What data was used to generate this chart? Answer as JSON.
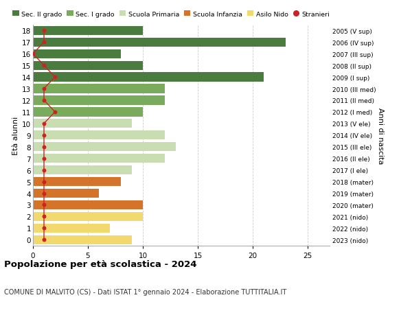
{
  "ages": [
    18,
    17,
    16,
    15,
    14,
    13,
    12,
    11,
    10,
    9,
    8,
    7,
    6,
    5,
    4,
    3,
    2,
    1,
    0
  ],
  "right_labels": [
    "2005 (V sup)",
    "2006 (IV sup)",
    "2007 (III sup)",
    "2008 (II sup)",
    "2009 (I sup)",
    "2010 (III med)",
    "2011 (II med)",
    "2012 (I med)",
    "2013 (V ele)",
    "2014 (IV ele)",
    "2015 (III ele)",
    "2016 (II ele)",
    "2017 (I ele)",
    "2018 (mater)",
    "2019 (mater)",
    "2020 (mater)",
    "2021 (nido)",
    "2022 (nido)",
    "2023 (nido)"
  ],
  "bar_values": [
    10,
    23,
    8,
    10,
    21,
    12,
    12,
    10,
    9,
    12,
    13,
    12,
    9,
    8,
    6,
    10,
    10,
    7,
    9
  ],
  "bar_colors": [
    "#4a7c40",
    "#4a7c40",
    "#4a7c40",
    "#4a7c40",
    "#4a7c40",
    "#7aab5c",
    "#7aab5c",
    "#7aab5c",
    "#c8ddb0",
    "#c8ddb0",
    "#c8ddb0",
    "#c8ddb0",
    "#c8ddb0",
    "#d4732a",
    "#d4732a",
    "#d4732a",
    "#f2d96e",
    "#f2d96e",
    "#f2d96e"
  ],
  "stranieri_values": [
    1,
    1,
    0,
    1,
    2,
    1,
    1,
    2,
    1,
    1,
    1,
    1,
    1,
    1,
    1,
    1,
    1,
    1,
    1
  ],
  "stranieri_color": "#cc2222",
  "legend_labels": [
    "Sec. II grado",
    "Sec. I grado",
    "Scuola Primaria",
    "Scuola Infanzia",
    "Asilo Nido",
    "Stranieri"
  ],
  "legend_colors": [
    "#4a7c40",
    "#7aab5c",
    "#c8ddb0",
    "#d4732a",
    "#f2d96e",
    "#cc2222"
  ],
  "ylabel": "Età alunni",
  "right_ylabel": "Anni di nascita",
  "title": "Popolazione per età scolastica - 2024",
  "subtitle": "COMUNE DI MALVITO (CS) - Dati ISTAT 1° gennaio 2024 - Elaborazione TUTTITALIA.IT",
  "xlim": [
    0,
    27
  ],
  "bg_color": "#ffffff",
  "grid_color": "#cccccc"
}
